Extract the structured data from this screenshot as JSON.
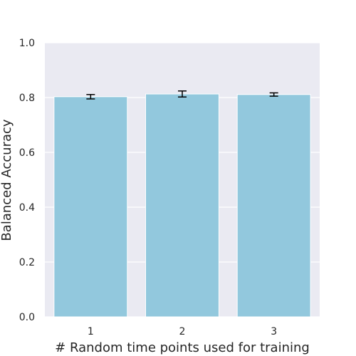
{
  "chart_data": {
    "type": "bar",
    "categories": [
      "1",
      "2",
      "3"
    ],
    "values": [
      0.803,
      0.813,
      0.811
    ],
    "error": [
      0.008,
      0.011,
      0.006
    ],
    "title": "",
    "xlabel": "# Random time points used for training",
    "ylabel": "Balanced Accuracy",
    "ylim": [
      0,
      1.0
    ],
    "yticks": [
      "0.0",
      "0.2",
      "0.4",
      "0.6",
      "0.8",
      "1.0"
    ],
    "grid": true,
    "colors": {
      "bar": "#92c8dd",
      "plot_background": "#eaeaf2",
      "grid": "#ffffff",
      "errorbar": "#000000"
    }
  }
}
